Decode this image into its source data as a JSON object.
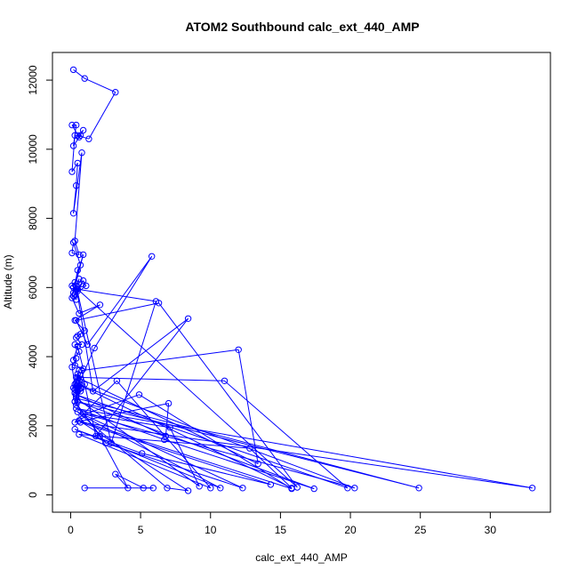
{
  "chart_data": {
    "type": "scatter",
    "title": "ATOM2 Southbound calc_ext_440_AMP",
    "xlabel": "calc_ext_440_AMP",
    "ylabel": "Altitude (m)",
    "xlim": [
      -1.3,
      34.3
    ],
    "ylim": [
      -500,
      12800
    ],
    "x_ticks": [
      0,
      5,
      10,
      15,
      20,
      25,
      30
    ],
    "y_ticks": [
      0,
      2000,
      4000,
      6000,
      8000,
      10000,
      12000
    ],
    "grid": false,
    "connected": true,
    "marker": "open-circle",
    "color": "#0000ff",
    "series": [
      {
        "x": [
          0.2,
          1.0,
          3.2,
          1.3,
          0.5,
          0.9,
          0.6,
          0.1,
          0.4,
          0.2,
          0.7,
          0.3,
          0.1,
          0.5,
          0.4,
          0.2,
          0.8,
          0.3,
          0.6,
          0.1,
          0.2,
          0.7,
          0.5,
          0.2,
          0.9,
          0.3,
          0.1,
          0.4,
          0.6,
          0.3,
          1.1,
          0.9,
          0.5,
          0.4,
          0.2,
          0.8,
          0.5,
          0.2,
          0.1,
          0.6,
          2.1,
          0.3,
          1.0,
          0.5,
          0.7,
          0.4,
          0.8,
          0.3,
          0.6,
          0.2,
          0.5,
          0.9,
          0.3,
          0.4,
          0.1,
          0.3,
          0.6,
          0.4,
          0.2,
          0.5,
          0.7,
          0.4,
          0.3,
          1.0,
          0.6,
          0.4,
          0.8,
          0.3,
          0.5,
          0.6,
          0.4,
          0.7,
          0.3,
          0.5,
          0.4,
          0.6,
          0.3,
          0.5,
          0.4,
          0.7,
          0.3,
          1.7,
          5.8,
          1.2,
          0.4,
          6.3,
          16.2,
          0.5,
          6.1,
          2.9,
          0.4,
          1.6,
          8.4,
          1.8,
          0.8,
          12.0,
          13.4,
          0.5,
          11.0,
          19.8,
          0.4,
          6.8,
          7.0,
          0.3,
          3.3,
          10.0,
          0.6,
          12.8,
          15.8,
          0.5,
          20.3,
          0.9,
          7.1,
          9.2,
          0.4,
          24.9,
          0.5,
          17.4,
          6.7,
          0.4,
          33.0,
          0.7,
          14.3,
          5.1,
          0.3,
          10.7,
          0.8,
          4.9,
          15.8,
          0.6,
          8.4,
          6.9,
          0.5,
          12.3,
          2.5,
          0.3,
          2.1,
          4.1,
          3.2,
          5.2,
          5.9,
          1.0
        ],
        "y": [
          12300,
          12050,
          11650,
          10300,
          10400,
          10550,
          10350,
          10700,
          10700,
          10100,
          10400,
          10400,
          9350,
          9600,
          8950,
          8150,
          9900,
          7350,
          6950,
          7000,
          7300,
          6650,
          6500,
          5850,
          6950,
          6150,
          6050,
          5950,
          6250,
          5800,
          6050,
          6200,
          5950,
          5650,
          5750,
          6100,
          5900,
          6000,
          5700,
          5250,
          5500,
          5050,
          4750,
          4600,
          4650,
          4550,
          4350,
          4350,
          4150,
          3900,
          4300,
          3650,
          3750,
          3950,
          3700,
          3200,
          3600,
          3250,
          3100,
          3500,
          3350,
          3150,
          3050,
          3200,
          3300,
          3400,
          3100,
          3050,
          3000,
          3150,
          3100,
          3000,
          2950,
          3100,
          2850,
          3050,
          2700,
          3150,
          2600,
          3100,
          2950,
          4250,
          6900,
          4350,
          5050,
          5550,
          220,
          5950,
          5600,
          1500,
          6050,
          3000,
          5100,
          1700,
          3600,
          4200,
          900,
          3400,
          3300,
          200,
          2900,
          1700,
          2650,
          2100,
          3300,
          200,
          1750,
          1350,
          200,
          3200,
          200,
          2350,
          1950,
          250,
          2800,
          200,
          2700,
          180,
          1600,
          2500,
          200,
          2100,
          300,
          1200,
          1900,
          200,
          2300,
          2900,
          180,
          2150,
          120,
          200,
          2400,
          200,
          1500,
          2700,
          1700,
          200,
          600,
          200,
          200,
          200
        ]
      }
    ]
  }
}
